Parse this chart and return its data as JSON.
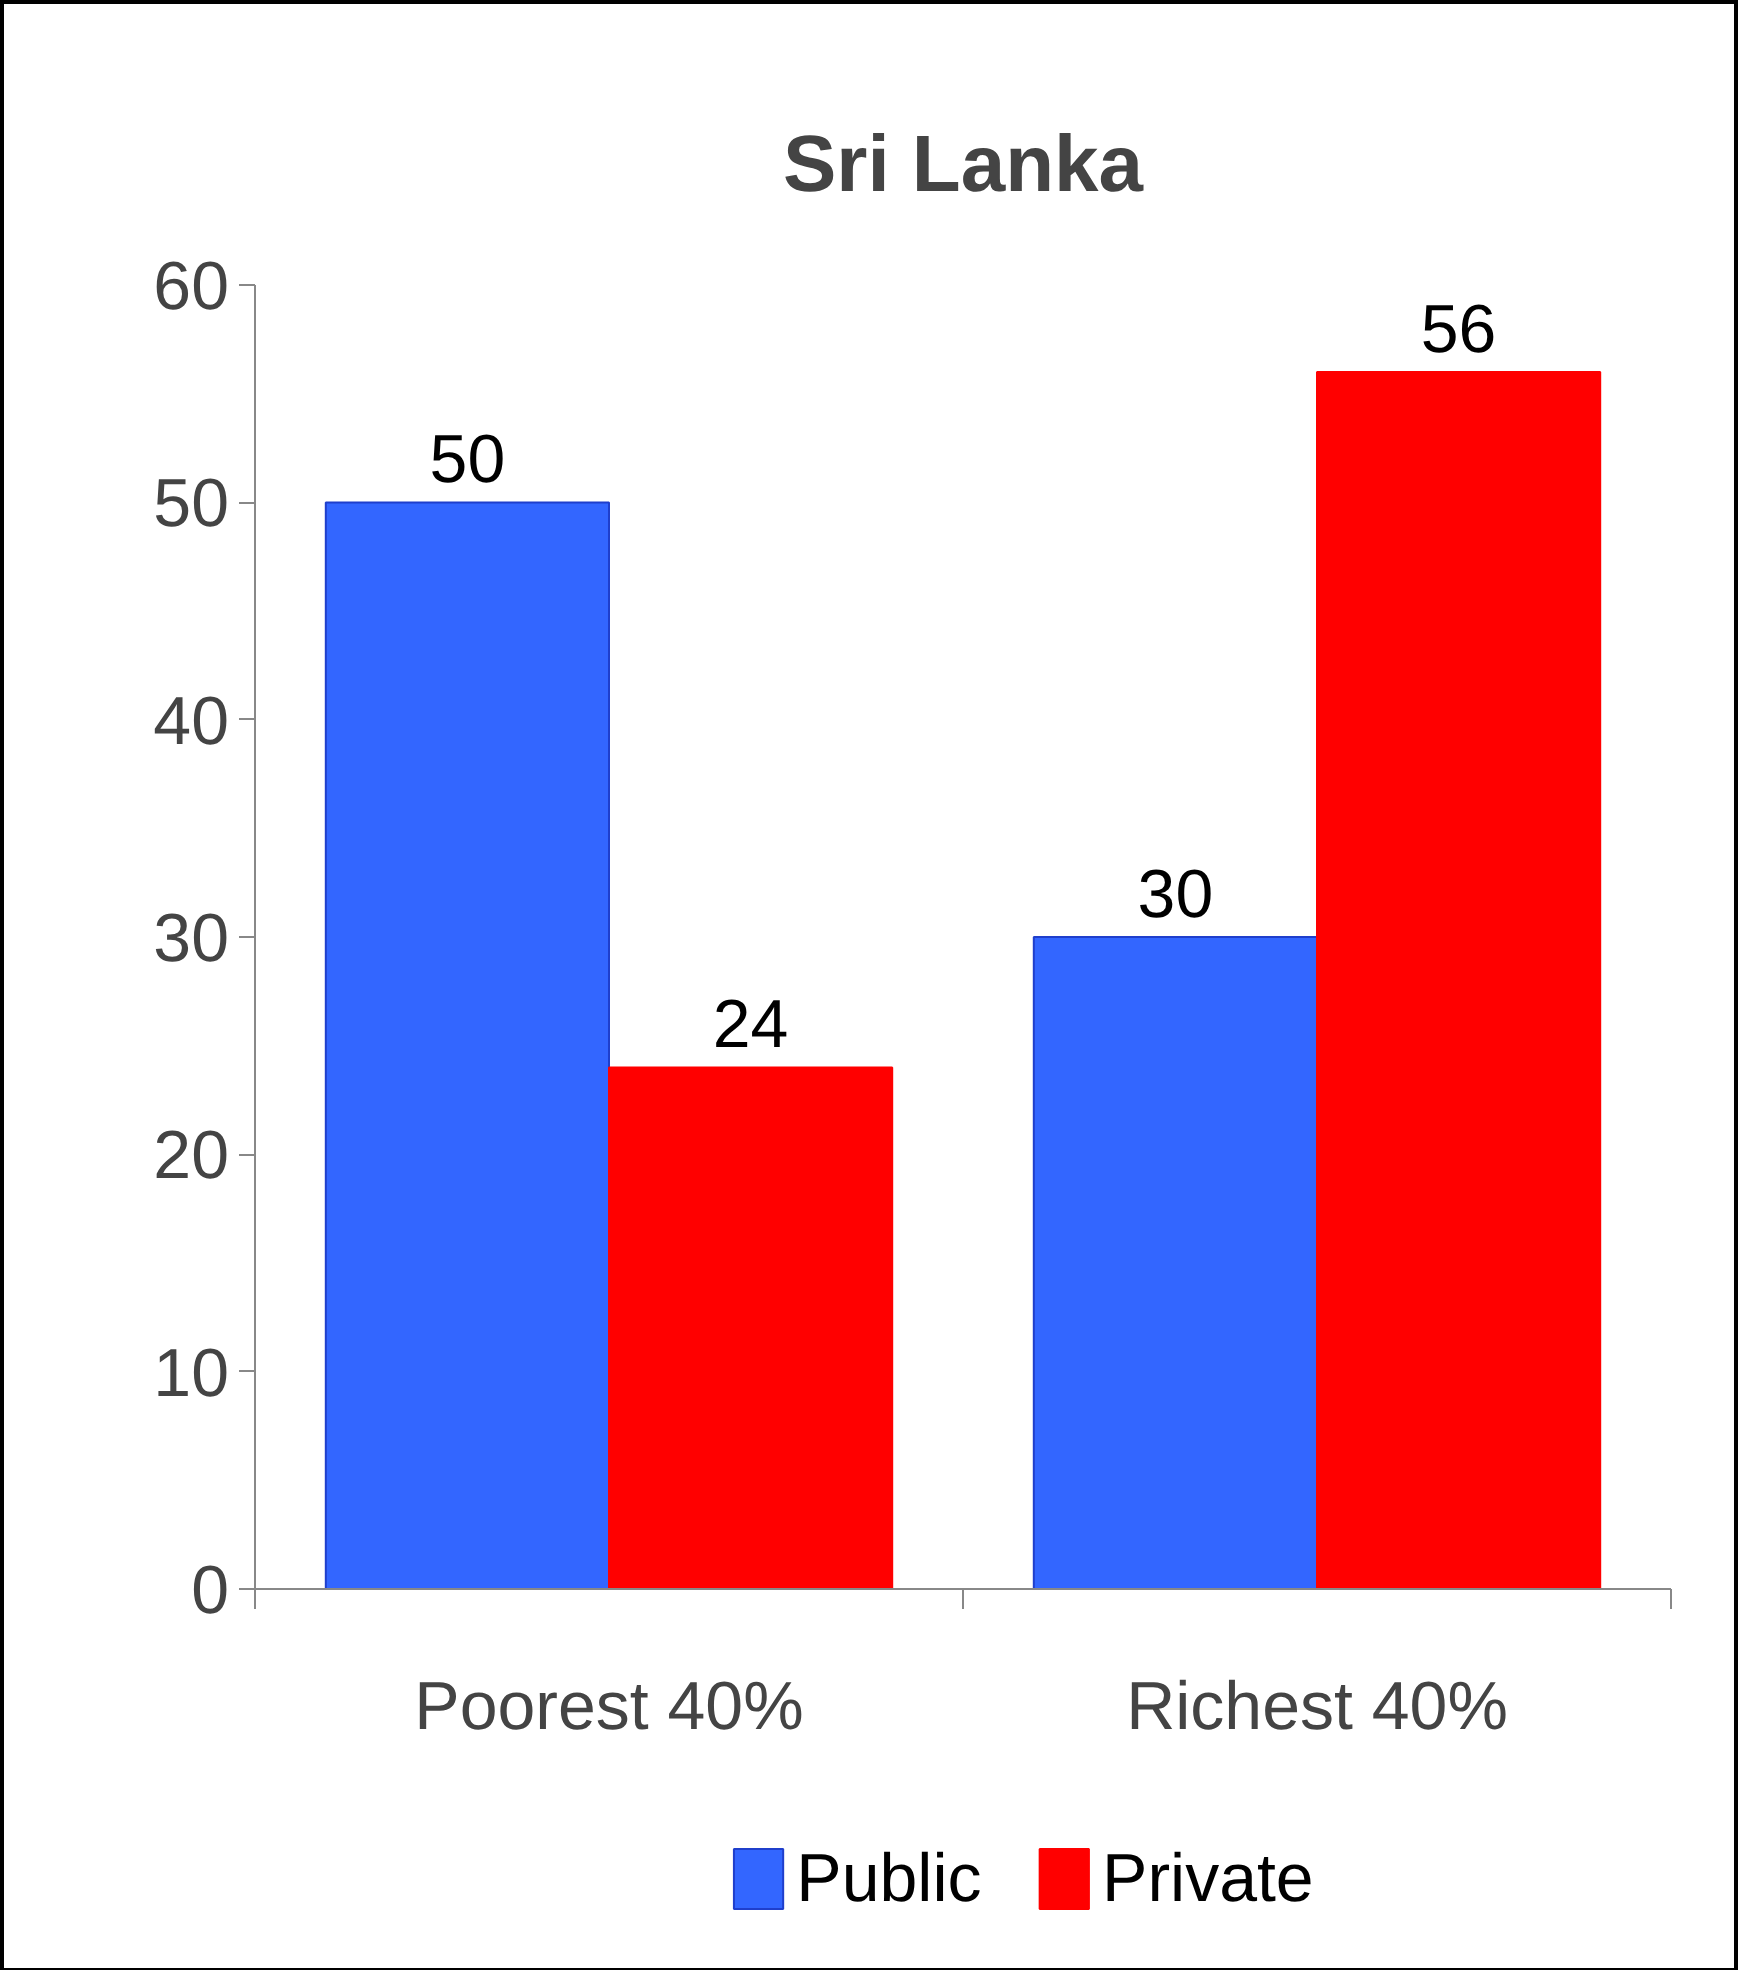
{
  "chart_data": {
    "type": "bar",
    "title": "Sri Lanka",
    "categories": [
      "Poorest 40%",
      "Richest 40%"
    ],
    "series": [
      {
        "name": "Public",
        "color": "#3366ff",
        "values": [
          50,
          30
        ]
      },
      {
        "name": "Private",
        "color": "#ff0000",
        "values": [
          24,
          56
        ]
      }
    ],
    "ylim": [
      0,
      60
    ],
    "yticks": [
      0,
      10,
      20,
      30,
      40,
      50,
      60
    ],
    "grid": false,
    "legend": "bottom",
    "data_labels": true
  }
}
